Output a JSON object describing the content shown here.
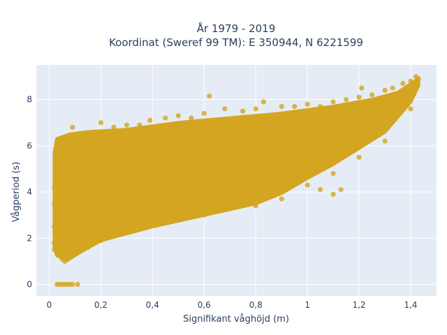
{
  "chart_data": {
    "type": "scatter",
    "title_line1": "År 1979 - 2019",
    "title_line2": "Koordinat (Sweref 99 TM): E 350944, N 6221599",
    "xlabel": "Signifikant våghöjd (m)",
    "ylabel": "Vågperiod (s)",
    "xlim": [
      -0.05,
      1.5
    ],
    "ylim": [
      -0.5,
      9.5
    ],
    "grid": true,
    "x_ticks": [
      {
        "value": 0,
        "label": "0"
      },
      {
        "value": 0.2,
        "label": "0,2"
      },
      {
        "value": 0.4,
        "label": "0,4"
      },
      {
        "value": 0.6,
        "label": "0,6"
      },
      {
        "value": 0.8,
        "label": "0,8"
      },
      {
        "value": 1.0,
        "label": "1"
      },
      {
        "value": 1.2,
        "label": "1,2"
      },
      {
        "value": 1.4,
        "label": "1,4"
      }
    ],
    "y_ticks": [
      {
        "value": 0,
        "label": "0"
      },
      {
        "value": 2,
        "label": "2"
      },
      {
        "value": 4,
        "label": "4"
      },
      {
        "value": 6,
        "label": "6"
      },
      {
        "value": 8,
        "label": "8"
      }
    ],
    "colors": {
      "marker": "#d4a520",
      "plot_bg": "#e5ecf6",
      "grid": "#ffffff",
      "text": "#2a3f5f"
    },
    "series": [
      {
        "values": [
          [
            0.03,
            0
          ],
          [
            0.04,
            0
          ],
          [
            0.05,
            0
          ],
          [
            0.06,
            0
          ],
          [
            0.07,
            0
          ],
          [
            0.08,
            0
          ],
          [
            0.09,
            0
          ],
          [
            0.11,
            0
          ],
          [
            0.02,
            1.5
          ],
          [
            0.02,
            1.8
          ],
          [
            0.025,
            5.6
          ],
          [
            0.05,
            1.1
          ],
          [
            0.06,
            1.0
          ],
          [
            0.08,
            1.2
          ],
          [
            0.02,
            2.5
          ],
          [
            0.02,
            3.5
          ],
          [
            0.02,
            4.2
          ],
          [
            0.03,
            5.0
          ],
          [
            0.05,
            5.6
          ],
          [
            0.04,
            3.0
          ],
          [
            0.07,
            6.2
          ],
          [
            0.1,
            6.4
          ],
          [
            0.09,
            6.8
          ],
          [
            0.14,
            6.5
          ],
          [
            0.18,
            6.6
          ],
          [
            0.2,
            7.0
          ],
          [
            0.25,
            6.8
          ],
          [
            0.3,
            6.9
          ],
          [
            0.35,
            6.9
          ],
          [
            0.39,
            7.1
          ],
          [
            0.45,
            7.2
          ],
          [
            0.5,
            7.3
          ],
          [
            0.55,
            7.2
          ],
          [
            0.6,
            7.4
          ],
          [
            0.62,
            8.15
          ],
          [
            0.68,
            7.6
          ],
          [
            0.75,
            7.5
          ],
          [
            0.8,
            7.6
          ],
          [
            0.83,
            7.9
          ],
          [
            0.9,
            7.7
          ],
          [
            0.95,
            7.7
          ],
          [
            1.0,
            7.8
          ],
          [
            1.05,
            7.7
          ],
          [
            1.1,
            7.9
          ],
          [
            1.15,
            8.0
          ],
          [
            1.2,
            8.1
          ],
          [
            1.21,
            8.5
          ],
          [
            1.25,
            8.2
          ],
          [
            1.3,
            8.4
          ],
          [
            1.33,
            8.5
          ],
          [
            1.37,
            8.7
          ],
          [
            1.4,
            8.8
          ],
          [
            1.42,
            9.0
          ],
          [
            1.43,
            8.9
          ],
          [
            1.05,
            4.1
          ],
          [
            1.13,
            4.1
          ],
          [
            1.1,
            3.9
          ],
          [
            0.76,
            3.9
          ],
          [
            0.7,
            3.8
          ],
          [
            0.73,
            3.95
          ],
          [
            0.1,
            1.5
          ],
          [
            0.15,
            1.6
          ],
          [
            0.2,
            1.9
          ],
          [
            0.3,
            2.3
          ],
          [
            0.4,
            2.6
          ],
          [
            0.5,
            2.9
          ],
          [
            0.6,
            3.0
          ],
          [
            0.7,
            3.3
          ],
          [
            0.8,
            3.4
          ],
          [
            0.9,
            3.7
          ],
          [
            1.0,
            4.3
          ],
          [
            1.1,
            4.8
          ],
          [
            1.2,
            5.5
          ],
          [
            1.3,
            6.2
          ],
          [
            1.4,
            7.6
          ],
          [
            0.1,
            4.8
          ],
          [
            0.2,
            5.2
          ],
          [
            0.3,
            5.4
          ],
          [
            0.4,
            5.6
          ],
          [
            0.5,
            5.9
          ],
          [
            0.6,
            6.0
          ],
          [
            0.7,
            6.3
          ],
          [
            0.8,
            6.5
          ],
          [
            0.9,
            6.6
          ],
          [
            1.0,
            6.8
          ],
          [
            1.1,
            7.0
          ],
          [
            1.2,
            7.3
          ]
        ]
      }
    ]
  }
}
